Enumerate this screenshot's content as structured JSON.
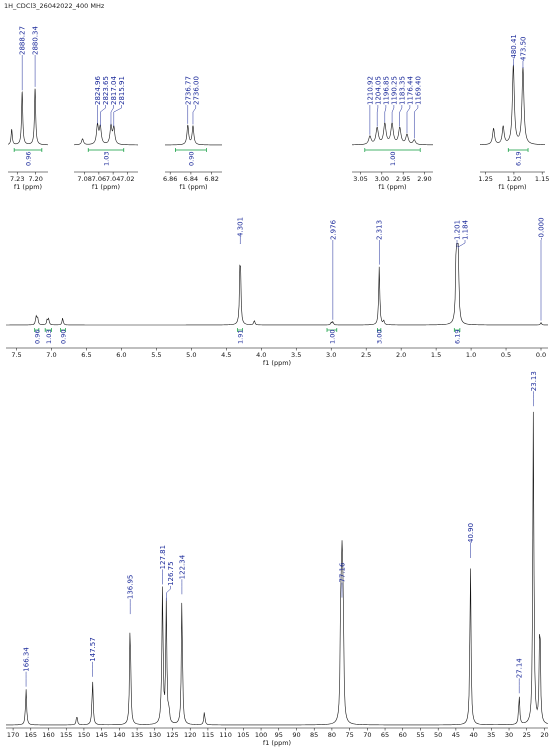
{
  "title": "1H_CDCl3_26042022_400 MHz",
  "chart_data": [
    {
      "id": "inset1",
      "type": "line",
      "xlim": [
        7.245,
        7.18
      ],
      "xticks": [
        "7.23",
        "7.20"
      ],
      "xlabel": "f1 (ppm)",
      "peaks": [
        {
          "x": 7.239,
          "h": 0.18
        },
        {
          "x": 7.222,
          "h": 0.62
        },
        {
          "x": 7.201,
          "h": 0.66
        }
      ],
      "peak_labels": [
        {
          "text": "2888.27",
          "x": 7.222
        },
        {
          "text": "2880.34",
          "x": 7.201
        }
      ],
      "integrals": [
        {
          "from": 7.235,
          "to": 7.19,
          "value": "0.96"
        }
      ]
    },
    {
      "id": "inset2",
      "type": "line",
      "xlim": [
        7.095,
        7.005
      ],
      "xticks": [
        "7.08",
        "7.06",
        "7.04",
        "7.02"
      ],
      "xlabel": "f1 (ppm)",
      "peaks": [
        {
          "x": 7.083,
          "h": 0.18
        },
        {
          "x": 7.062,
          "h": 0.58
        },
        {
          "x": 7.058,
          "h": 0.52
        },
        {
          "x": 7.043,
          "h": 0.55
        },
        {
          "x": 7.039,
          "h": 0.5
        }
      ],
      "peak_labels": [
        {
          "text": "2824.96",
          "x": 7.062
        },
        {
          "text": "2823.65",
          "x": 7.058
        },
        {
          "text": "2817.04",
          "x": 7.043
        },
        {
          "text": "2815.91",
          "x": 7.039
        }
      ],
      "integrals": [
        {
          "from": 7.075,
          "to": 7.025,
          "value": "1.03"
        }
      ]
    },
    {
      "id": "inset3",
      "type": "line",
      "xlim": [
        6.865,
        6.81
      ],
      "xticks": [
        "6.86",
        "6.84",
        "6.82"
      ],
      "xlabel": "f1 (ppm)",
      "peaks": [
        {
          "x": 6.843,
          "h": 0.6
        },
        {
          "x": 6.838,
          "h": 0.58
        }
      ],
      "peak_labels": [
        {
          "text": "2736.77",
          "x": 6.843
        },
        {
          "text": "2736.00",
          "x": 6.838
        }
      ],
      "integrals": [
        {
          "from": 6.855,
          "to": 6.825,
          "value": "0.90"
        }
      ]
    },
    {
      "id": "inset4",
      "type": "line",
      "xlim": [
        3.07,
        2.88
      ],
      "xticks": [
        "3.05",
        "3.00",
        "2.95",
        "2.90"
      ],
      "xlabel": "f1 (ppm)",
      "peaks": [
        {
          "x": 3.028,
          "h": 0.25
        },
        {
          "x": 3.011,
          "h": 0.5
        },
        {
          "x": 2.993,
          "h": 0.62
        },
        {
          "x": 2.976,
          "h": 0.62
        },
        {
          "x": 2.958,
          "h": 0.5
        },
        {
          "x": 2.941,
          "h": 0.3
        },
        {
          "x": 2.924,
          "h": 0.14
        }
      ],
      "peak_labels": [
        {
          "text": "1210.92",
          "x": 3.028
        },
        {
          "text": "1204.05",
          "x": 3.011
        },
        {
          "text": "1196.85",
          "x": 2.993
        },
        {
          "text": "1190.25",
          "x": 2.976
        },
        {
          "text": "1183.35",
          "x": 2.958
        },
        {
          "text": "1176.44",
          "x": 2.941
        },
        {
          "text": "1169.40",
          "x": 2.924
        }
      ],
      "integrals": [
        {
          "from": 3.04,
          "to": 2.91,
          "value": "1.00"
        }
      ]
    },
    {
      "id": "inset5",
      "type": "line",
      "xlim": [
        1.26,
        1.145
      ],
      "xticks": [
        "1.25",
        "1.20",
        "1.15"
      ],
      "xlabel": "f1 (ppm)",
      "peaks": [
        {
          "x": 1.236,
          "h": 0.2
        },
        {
          "x": 1.219,
          "h": 0.22
        },
        {
          "x": 1.201,
          "h": 0.98
        },
        {
          "x": 1.184,
          "h": 0.95
        }
      ],
      "peak_labels": [
        {
          "text": "480.41",
          "x": 1.201
        },
        {
          "text": "473.50",
          "x": 1.184
        }
      ],
      "integrals": [
        {
          "from": 1.21,
          "to": 1.175,
          "value": "6.19"
        }
      ]
    },
    {
      "id": "proton",
      "type": "line",
      "xlim": [
        7.65,
        -0.1
      ],
      "xticks": [
        "7.5",
        "7.0",
        "6.5",
        "6.0",
        "5.5",
        "5.0",
        "4.5",
        "4.0",
        "3.5",
        "3.0",
        "2.5",
        "2.0",
        "1.5",
        "1.0",
        "0.5",
        "0.0"
      ],
      "xlabel": "f1 (ppm)",
      "peaks": [
        {
          "x": 7.22,
          "h": 0.1
        },
        {
          "x": 7.2,
          "h": 0.1
        },
        {
          "x": 7.06,
          "h": 0.07
        },
        {
          "x": 7.04,
          "h": 0.07
        },
        {
          "x": 6.84,
          "h": 0.09
        },
        {
          "x": 4.301,
          "h": 1.0
        },
        {
          "x": 4.1,
          "h": 0.06
        },
        {
          "x": 3.0,
          "h": 0.03
        },
        {
          "x": 2.976,
          "h": 0.04
        },
        {
          "x": 2.313,
          "h": 0.73
        },
        {
          "x": 2.25,
          "h": 0.05
        },
        {
          "x": 1.21,
          "h": 0.95
        },
        {
          "x": 1.201,
          "h": 0.96
        },
        {
          "x": 1.184,
          "h": 0.93
        },
        {
          "x": 0.0,
          "h": 0.03
        }
      ],
      "peak_labels": [
        {
          "text": "4.301",
          "x": 4.301
        },
        {
          "text": "2.976",
          "x": 2.976
        },
        {
          "text": "2.313",
          "x": 2.313
        },
        {
          "text": "1.201",
          "x": 1.201
        },
        {
          "text": "1.184",
          "x": 1.184
        },
        {
          "text": "-0.000",
          "x": 0.0
        }
      ],
      "integrals": [
        {
          "from": 7.24,
          "to": 7.18,
          "value": "0.96"
        },
        {
          "from": 7.09,
          "to": 7.0,
          "value": "1.03"
        },
        {
          "from": 6.87,
          "to": 6.8,
          "value": "0.90"
        },
        {
          "from": 4.34,
          "to": 4.27,
          "value": "1.91"
        },
        {
          "from": 3.06,
          "to": 2.92,
          "value": "1.00"
        },
        {
          "from": 2.34,
          "to": 2.29,
          "value": "3.00"
        },
        {
          "from": 1.24,
          "to": 1.16,
          "value": "6.19"
        }
      ]
    },
    {
      "id": "carbon",
      "type": "line",
      "xlim": [
        172,
        19
      ],
      "xticks": [
        "170",
        "165",
        "160",
        "155",
        "150",
        "145",
        "140",
        "135",
        "130",
        "125",
        "120",
        "115",
        "110",
        "105",
        "100",
        "95",
        "90",
        "85",
        "80",
        "75",
        "70",
        "65",
        "60",
        "55",
        "50",
        "45",
        "40",
        "35",
        "30",
        "25",
        "20"
      ],
      "xlabel": "f1 (ppm)",
      "peaks": [
        {
          "x": 166.34,
          "h": 0.11
        },
        {
          "x": 152.0,
          "h": 0.03
        },
        {
          "x": 147.57,
          "h": 0.14
        },
        {
          "x": 136.95,
          "h": 0.33
        },
        {
          "x": 128.2,
          "h": 0.03
        },
        {
          "x": 127.81,
          "h": 0.42
        },
        {
          "x": 126.75,
          "h": 0.37
        },
        {
          "x": 126.0,
          "h": 0.04
        },
        {
          "x": 122.34,
          "h": 0.39
        },
        {
          "x": 116.0,
          "h": 0.04
        },
        {
          "x": 77.48,
          "h": 0.37
        },
        {
          "x": 77.16,
          "h": 0.38
        },
        {
          "x": 76.84,
          "h": 0.37
        },
        {
          "x": 40.9,
          "h": 0.5
        },
        {
          "x": 27.14,
          "h": 0.09
        },
        {
          "x": 23.13,
          "h": 0.96
        },
        {
          "x": 21.3,
          "h": 0.35
        }
      ],
      "peak_labels": [
        {
          "text": "166.34",
          "x": 166.34
        },
        {
          "text": "147.57",
          "x": 147.57
        },
        {
          "text": "136.95",
          "x": 136.95
        },
        {
          "text": "127.81",
          "x": 127.81
        },
        {
          "text": "126.75",
          "x": 126.75
        },
        {
          "text": "122.34",
          "x": 122.34
        },
        {
          "text": "77.16",
          "x": 77.16
        },
        {
          "text": "40.90",
          "x": 40.9
        },
        {
          "text": "27.14",
          "x": 27.14
        },
        {
          "text": "23.13",
          "x": 23.13
        }
      ],
      "integrals": []
    }
  ]
}
